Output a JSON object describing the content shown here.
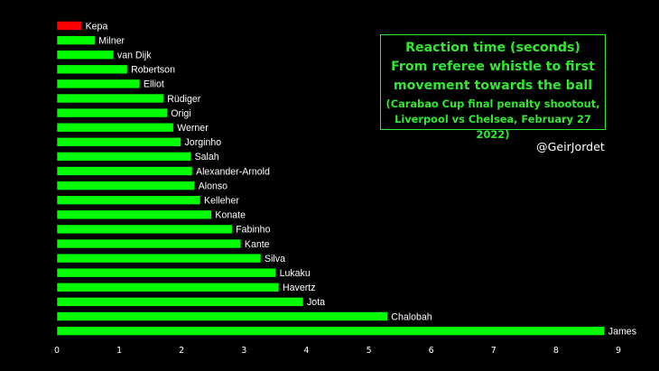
{
  "title_lines": [
    "Reaction time (seconds)",
    "From referee whistle to first",
    "movement towards the ball"
  ],
  "subtitle_lines": [
    "(Carabao Cup final penalty shootout,",
    "Liverpool vs Chelsea, February 27 2022)"
  ],
  "credit": "@GeirJordet",
  "colors": {
    "background": "#000000",
    "bar": "#00ff00",
    "highlight": "#ff0000",
    "title": "#32e632",
    "text": "#ffffff"
  },
  "chart_data": {
    "type": "bar",
    "orientation": "horizontal",
    "categories": [
      "Kepa",
      "Milner",
      "van Dijk",
      "Robertson",
      "Elliot",
      "Rüdiger",
      "Origi",
      "Werner",
      "Jorginho",
      "Salah",
      "Alexander-Arnold",
      "Alonso",
      "Kelleher",
      "Konate",
      "Fabinho",
      "Kante",
      "Silva",
      "Lukaku",
      "Havertz",
      "Jota",
      "Chalobah",
      "James"
    ],
    "values": [
      0.4,
      0.61,
      0.91,
      1.13,
      1.33,
      1.71,
      1.77,
      1.87,
      1.99,
      2.15,
      2.17,
      2.21,
      2.3,
      2.48,
      2.81,
      2.95,
      3.27,
      3.51,
      3.56,
      3.95,
      5.3,
      8.78
    ],
    "highlight": "Kepa",
    "xticks": [
      0,
      1,
      2,
      3,
      4,
      5,
      6,
      7,
      8,
      9
    ],
    "xlim": [
      0,
      9
    ],
    "grid": false,
    "legend": false
  }
}
